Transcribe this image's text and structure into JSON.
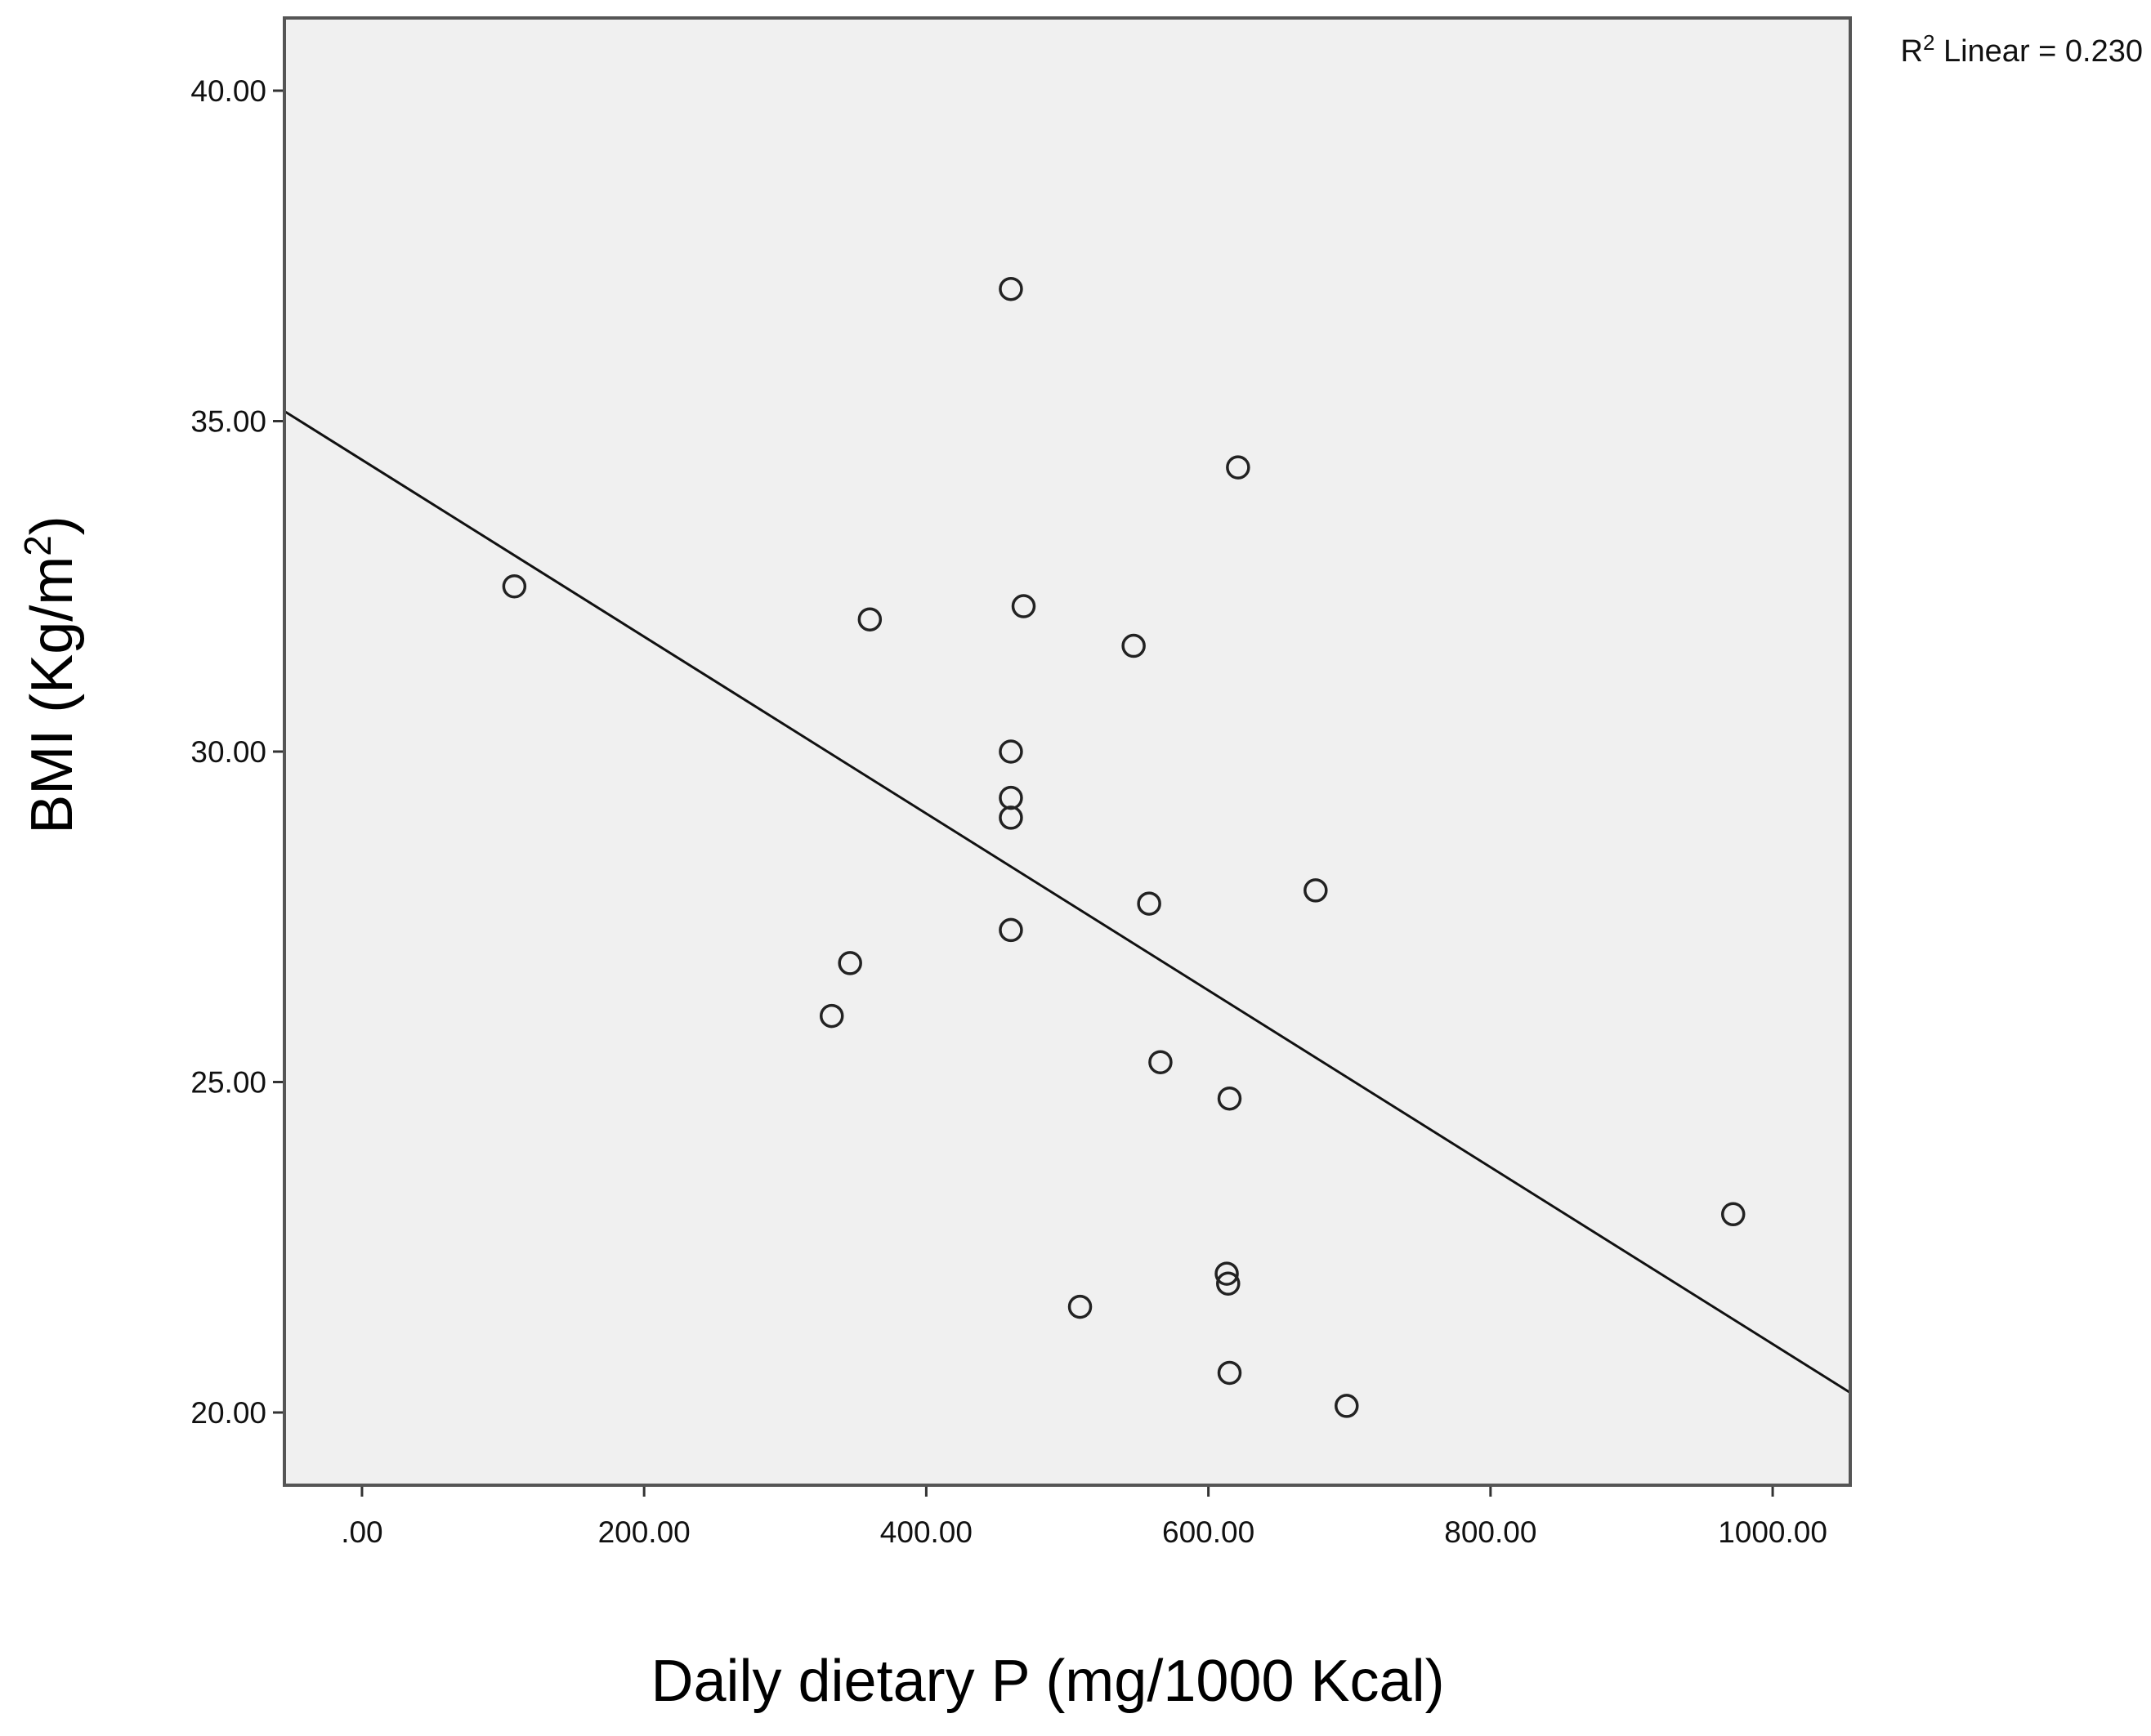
{
  "chart_data": {
    "type": "scatter",
    "title": "",
    "xlabel": "Daily dietary P (mg/1000 Kcal)",
    "ylabel": {
      "prefix": "BMI (Kg/m",
      "superscript": "2",
      "suffix": ")"
    },
    "xlim": [
      -55,
      1055
    ],
    "ylim": [
      18.9,
      41.1
    ],
    "x_ticks": [
      0,
      200,
      400,
      600,
      800,
      1000
    ],
    "x_tick_labels": [
      ".00",
      "200.00",
      "400.00",
      "600.00",
      "800.00",
      "1000.00"
    ],
    "y_ticks": [
      20,
      25,
      30,
      35,
      40
    ],
    "y_tick_labels": [
      "20.00",
      "25.00",
      "30.00",
      "35.00",
      "40.00"
    ],
    "grid": false,
    "points": [
      {
        "x": 108,
        "y": 32.5
      },
      {
        "x": 333,
        "y": 26.0
      },
      {
        "x": 346,
        "y": 26.8
      },
      {
        "x": 360,
        "y": 32.0
      },
      {
        "x": 460,
        "y": 37.0
      },
      {
        "x": 460,
        "y": 30.0
      },
      {
        "x": 460,
        "y": 29.3
      },
      {
        "x": 460,
        "y": 29.0
      },
      {
        "x": 460,
        "y": 27.3
      },
      {
        "x": 469,
        "y": 32.2
      },
      {
        "x": 509,
        "y": 21.6
      },
      {
        "x": 547,
        "y": 31.6
      },
      {
        "x": 558,
        "y": 27.7
      },
      {
        "x": 566,
        "y": 25.3
      },
      {
        "x": 613,
        "y": 22.1
      },
      {
        "x": 614,
        "y": 21.95
      },
      {
        "x": 615,
        "y": 24.75
      },
      {
        "x": 615,
        "y": 20.6
      },
      {
        "x": 621,
        "y": 34.3
      },
      {
        "x": 676,
        "y": 27.9
      },
      {
        "x": 698,
        "y": 20.1
      },
      {
        "x": 972,
        "y": 23.0
      }
    ],
    "fit_line": {
      "type": "linear",
      "x": [
        -55,
        1055
      ],
      "y": [
        35.15,
        20.3
      ]
    },
    "annotation": {
      "prefix": "R",
      "superscript": "2",
      "suffix": " Linear = 0.230",
      "placement": "top-right"
    },
    "colors": {
      "plot_background": "#f0f0f0",
      "frame": "#555555",
      "marker_stroke": "#222222",
      "line": "#111111"
    }
  }
}
